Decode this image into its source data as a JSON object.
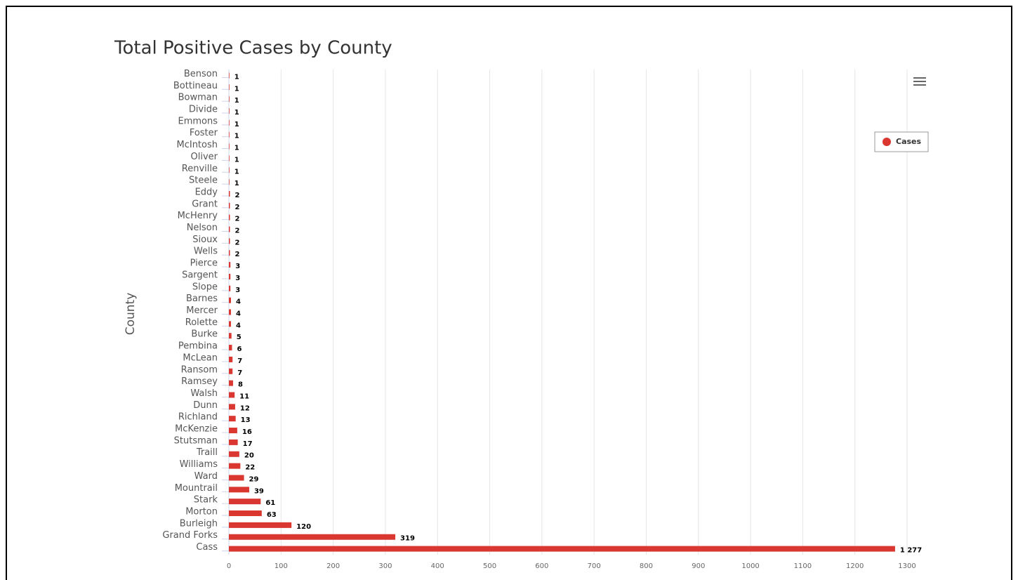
{
  "chart_data": {
    "type": "bar",
    "orientation": "horizontal",
    "title": "Total Positive Cases by County",
    "y_label": "County",
    "categories": [
      "Benson",
      "Bottineau",
      "Bowman",
      "Divide",
      "Emmons",
      "Foster",
      "McIntosh",
      "Oliver",
      "Renville",
      "Steele",
      "Eddy",
      "Grant",
      "McHenry",
      "Nelson",
      "Sioux",
      "Wells",
      "Pierce",
      "Sargent",
      "Slope",
      "Barnes",
      "Mercer",
      "Rolette",
      "Burke",
      "Pembina",
      "McLean",
      "Ransom",
      "Ramsey",
      "Walsh",
      "Dunn",
      "Richland",
      "McKenzie",
      "Stutsman",
      "Traill",
      "Williams",
      "Ward",
      "Mountrail",
      "Stark",
      "Morton",
      "Burleigh",
      "Grand Forks",
      "Cass"
    ],
    "series": [
      {
        "name": "Cases",
        "color": "#d9372f",
        "values": [
          1,
          1,
          1,
          1,
          1,
          1,
          1,
          1,
          1,
          1,
          2,
          2,
          2,
          2,
          2,
          2,
          3,
          3,
          3,
          4,
          4,
          4,
          5,
          6,
          7,
          7,
          8,
          11,
          12,
          13,
          16,
          17,
          20,
          22,
          29,
          39,
          61,
          63,
          120,
          319,
          1277
        ]
      }
    ],
    "value_labels": [
      "1",
      "1",
      "1",
      "1",
      "1",
      "1",
      "1",
      "1",
      "1",
      "1",
      "2",
      "2",
      "2",
      "2",
      "2",
      "2",
      "3",
      "3",
      "3",
      "4",
      "4",
      "4",
      "5",
      "6",
      "7",
      "7",
      "8",
      "11",
      "12",
      "13",
      "16",
      "17",
      "20",
      "22",
      "29",
      "39",
      "61",
      "63",
      "120",
      "319",
      "1 277"
    ],
    "xlim": [
      0,
      1300
    ],
    "xticks": [
      0,
      100,
      200,
      300,
      400,
      500,
      600,
      700,
      800,
      900,
      1000,
      1100,
      1200,
      1300
    ],
    "grid": true,
    "legend": "top-right"
  }
}
